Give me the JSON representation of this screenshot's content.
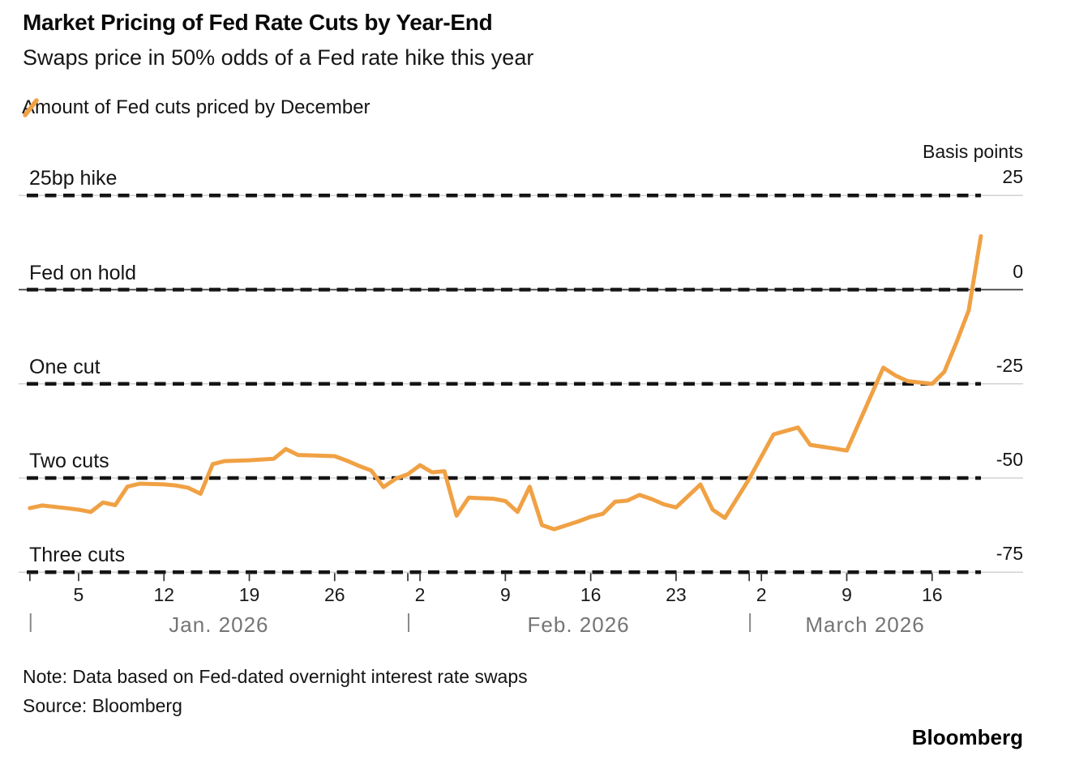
{
  "header": {
    "title": "Market Pricing of Fed Rate Cuts by Year-End",
    "subtitle": "Swaps price in 50% odds of a Fed rate hike this year"
  },
  "legend": {
    "label": "Amount of Fed cuts priced by December",
    "swatch_icon": "orange-slash-icon",
    "swatch_color": "#F0A144"
  },
  "colors": {
    "accent_orange": "#F0A144",
    "dash_black": "#151515",
    "grid_gray": "#c9c9c9",
    "zero_line": "#3c3c3c",
    "month_gray": "#757575",
    "tick_color": "#333333"
  },
  "chart_data": {
    "type": "line",
    "title": "Market Pricing of Fed Rate Cuts by Year-End",
    "subtitle": "Swaps price in 50% odds of a Fed rate hike this year",
    "unit_label": "Basis points",
    "legend_position": "top-left",
    "grid": "dashed-horizontal",
    "y_axis": {
      "side": "right",
      "ticks": [
        25,
        0,
        -25,
        -50,
        -75
      ],
      "tick_labels": [
        "25",
        "0",
        "-25",
        "-50",
        "-75"
      ],
      "range": [
        -80,
        30
      ]
    },
    "reference_lines": [
      {
        "label": "25bp hike",
        "value": 25,
        "emphasis": false
      },
      {
        "label": "Fed on hold",
        "value": 0,
        "emphasis": true
      },
      {
        "label": "One cut",
        "value": -25,
        "emphasis": false
      },
      {
        "label": "Two cuts",
        "value": -50,
        "emphasis": false
      },
      {
        "label": "Three cuts",
        "value": -75,
        "emphasis": false
      }
    ],
    "x_axis": {
      "domain_days": [
        0,
        78
      ],
      "start_date": "Jan 1, 2026",
      "end_date": "Mar 20, 2026",
      "weekly_ticks": [
        {
          "day": 4,
          "label": "5"
        },
        {
          "day": 11,
          "label": "12"
        },
        {
          "day": 18,
          "label": "19"
        },
        {
          "day": 25,
          "label": "26"
        },
        {
          "day": 32,
          "label": "2"
        },
        {
          "day": 39,
          "label": "9"
        },
        {
          "day": 46,
          "label": "16"
        },
        {
          "day": 53,
          "label": "23"
        },
        {
          "day": 60,
          "label": "2"
        },
        {
          "day": 67,
          "label": "9"
        },
        {
          "day": 74,
          "label": "16"
        }
      ],
      "separator": "|",
      "months": [
        {
          "label": "Jan. 2026",
          "span": [
            0,
            31
          ]
        },
        {
          "label": "Feb. 2026",
          "span": [
            31,
            59
          ]
        },
        {
          "label": "March 2026",
          "span": [
            59,
            78
          ]
        }
      ]
    },
    "series": [
      {
        "name": "Amount of Fed cuts priced by December",
        "color": "#F0A144",
        "unit": "basis points",
        "points": [
          {
            "date": "Jan 1",
            "day": 0,
            "value": -58.0
          },
          {
            "date": "Jan 2",
            "day": 1,
            "value": -57.3
          },
          {
            "date": "Jan 4",
            "day": 3,
            "value": -58.0
          },
          {
            "date": "Jan 5",
            "day": 4,
            "value": -58.4
          },
          {
            "date": "Jan 6",
            "day": 5,
            "value": -59.0
          },
          {
            "date": "Jan 7",
            "day": 6,
            "value": -56.5
          },
          {
            "date": "Jan 8",
            "day": 7,
            "value": -57.2
          },
          {
            "date": "Jan 9",
            "day": 8,
            "value": -52.3
          },
          {
            "date": "Jan 10",
            "day": 9,
            "value": -51.5
          },
          {
            "date": "Jan 12",
            "day": 11,
            "value": -51.7
          },
          {
            "date": "Jan 13",
            "day": 12,
            "value": -52.0
          },
          {
            "date": "Jan 14",
            "day": 13,
            "value": -52.6
          },
          {
            "date": "Jan 15",
            "day": 14,
            "value": -54.2
          },
          {
            "date": "Jan 16",
            "day": 15,
            "value": -46.3
          },
          {
            "date": "Jan 17",
            "day": 16,
            "value": -45.5
          },
          {
            "date": "Jan 19",
            "day": 18,
            "value": -45.3
          },
          {
            "date": "Jan 21",
            "day": 20,
            "value": -44.9
          },
          {
            "date": "Jan 22",
            "day": 21,
            "value": -42.3
          },
          {
            "date": "Jan 23",
            "day": 22,
            "value": -43.9
          },
          {
            "date": "Jan 26",
            "day": 25,
            "value": -44.2
          },
          {
            "date": "Jan 27",
            "day": 26,
            "value": -45.4
          },
          {
            "date": "Jan 28",
            "day": 27,
            "value": -46.8
          },
          {
            "date": "Jan 29",
            "day": 28,
            "value": -48.0
          },
          {
            "date": "Jan 30",
            "day": 29,
            "value": -52.4
          },
          {
            "date": "Jan 31",
            "day": 30,
            "value": -50.2
          },
          {
            "date": "Feb 1",
            "day": 31,
            "value": -49.0
          },
          {
            "date": "Feb 2",
            "day": 32,
            "value": -46.6
          },
          {
            "date": "Feb 3",
            "day": 33,
            "value": -48.5
          },
          {
            "date": "Feb 4",
            "day": 34,
            "value": -48.2
          },
          {
            "date": "Feb 5",
            "day": 35,
            "value": -60.0
          },
          {
            "date": "Feb 6",
            "day": 36,
            "value": -55.2
          },
          {
            "date": "Feb 8",
            "day": 38,
            "value": -55.5
          },
          {
            "date": "Feb 9",
            "day": 39,
            "value": -56.1
          },
          {
            "date": "Feb 10",
            "day": 40,
            "value": -59.0
          },
          {
            "date": "Feb 11",
            "day": 41,
            "value": -52.3
          },
          {
            "date": "Feb 12",
            "day": 42,
            "value": -62.5
          },
          {
            "date": "Feb 13",
            "day": 43,
            "value": -63.6
          },
          {
            "date": "Feb 15",
            "day": 45,
            "value": -61.5
          },
          {
            "date": "Feb 16",
            "day": 46,
            "value": -60.3
          },
          {
            "date": "Feb 17",
            "day": 47,
            "value": -59.5
          },
          {
            "date": "Feb 18",
            "day": 48,
            "value": -56.3
          },
          {
            "date": "Feb 19",
            "day": 49,
            "value": -56.0
          },
          {
            "date": "Feb 20",
            "day": 50,
            "value": -54.5
          },
          {
            "date": "Feb 21",
            "day": 51,
            "value": -55.6
          },
          {
            "date": "Feb 22",
            "day": 52,
            "value": -57.0
          },
          {
            "date": "Feb 23",
            "day": 53,
            "value": -57.8
          },
          {
            "date": "Feb 25",
            "day": 55,
            "value": -51.7
          },
          {
            "date": "Feb 26",
            "day": 56,
            "value": -58.4
          },
          {
            "date": "Feb 27",
            "day": 57,
            "value": -60.6
          },
          {
            "date": "Mar 1",
            "day": 59,
            "value": -50.2
          },
          {
            "date": "Mar 3",
            "day": 61,
            "value": -38.4
          },
          {
            "date": "Mar 5",
            "day": 63,
            "value": -36.6
          },
          {
            "date": "Mar 6",
            "day": 64,
            "value": -41.2
          },
          {
            "date": "Mar 8",
            "day": 66,
            "value": -42.2
          },
          {
            "date": "Mar 9",
            "day": 67,
            "value": -42.7
          },
          {
            "date": "Mar 12",
            "day": 70,
            "value": -20.7
          },
          {
            "date": "Mar 13",
            "day": 71,
            "value": -22.8
          },
          {
            "date": "Mar 14",
            "day": 72,
            "value": -24.3
          },
          {
            "date": "Mar 16",
            "day": 74,
            "value": -25.0
          },
          {
            "date": "Mar 17",
            "day": 75,
            "value": -21.8
          },
          {
            "date": "Mar 18",
            "day": 76,
            "value": -14.0
          },
          {
            "date": "Mar 19",
            "day": 77,
            "value": -5.5
          },
          {
            "date": "Mar 20",
            "day": 78,
            "value": 14.2
          }
        ]
      }
    ]
  },
  "footer": {
    "note": "Note: Data based on Fed-dated overnight interest rate swaps",
    "source": "Source: Bloomberg",
    "brand": "Bloomberg"
  }
}
